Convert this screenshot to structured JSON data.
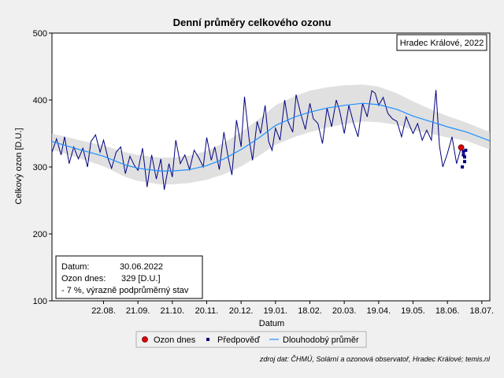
{
  "chart_data": {
    "type": "line",
    "title": "Denní průměry celkového ozonu",
    "location_label": "Hradec Králové, 2022",
    "xlabel": "Datum",
    "ylabel": "Celkový ozon [D.U.]",
    "ylim": [
      100,
      500
    ],
    "yticks": [
      100,
      200,
      300,
      400,
      500
    ],
    "x_range": [
      "2021-07-08",
      "2022-07-25"
    ],
    "xticks": [
      "22.08.",
      "21.09.",
      "21.10.",
      "20.11.",
      "20.12.",
      "19.01.",
      "18.02.",
      "20.03.",
      "19.04.",
      "19.05.",
      "18.06.",
      "18.07."
    ],
    "xtick_dates": [
      "2021-08-22",
      "2021-09-21",
      "2021-10-21",
      "2021-11-20",
      "2021-12-20",
      "2022-01-19",
      "2022-02-18",
      "2022-03-20",
      "2022-04-19",
      "2022-05-19",
      "2022-06-18",
      "2022-07-18"
    ],
    "grid": false,
    "legend_position": "bottom",
    "legend": [
      {
        "label": "Ozon dnes",
        "marker": "red-dot"
      },
      {
        "label": "Předpověď",
        "marker": "navy-square"
      },
      {
        "label": "Dlouhodobý průměr",
        "marker": "blue-line"
      }
    ],
    "info_box": {
      "date_label": "Datum:",
      "date_value": "30.06.2022",
      "ozone_label": "Ozon dnes:",
      "ozone_value": "329 [D.U.]",
      "status": "- 7 %, výrazně podprůměrný stav"
    },
    "source": "zdroj dat: ČHMÚ, Solární a ozonová observatoř, Hradec Králové; temis.nl",
    "series": [
      {
        "name": "Dlouhodobý průměr",
        "x": [
          "2021-07-08",
          "2021-08-01",
          "2021-08-22",
          "2021-09-10",
          "2021-09-21",
          "2021-10-10",
          "2021-10-21",
          "2021-11-05",
          "2021-11-20",
          "2021-12-05",
          "2021-12-20",
          "2022-01-05",
          "2022-01-19",
          "2022-02-05",
          "2022-02-18",
          "2022-03-05",
          "2022-03-20",
          "2022-04-05",
          "2022-04-19",
          "2022-05-05",
          "2022-05-19",
          "2022-06-05",
          "2022-06-18",
          "2022-07-05",
          "2022-07-25"
        ],
        "y": [
          338,
          326,
          316,
          303,
          298,
          294,
          294,
          296,
          302,
          312,
          326,
          344,
          362,
          375,
          382,
          388,
          392,
          395,
          393,
          386,
          376,
          367,
          360,
          352,
          339
        ]
      },
      {
        "name": "Denní průměry",
        "x": [
          "2021-07-08",
          "2021-07-12",
          "2021-07-16",
          "2021-07-19",
          "2021-07-23",
          "2021-07-27",
          "2021-07-31",
          "2021-08-04",
          "2021-08-08",
          "2021-08-11",
          "2021-08-15",
          "2021-08-19",
          "2021-08-22",
          "2021-08-26",
          "2021-08-29",
          "2021-09-02",
          "2021-09-06",
          "2021-09-10",
          "2021-09-14",
          "2021-09-18",
          "2021-09-21",
          "2021-09-25",
          "2021-09-29",
          "2021-10-03",
          "2021-10-07",
          "2021-10-11",
          "2021-10-14",
          "2021-10-18",
          "2021-10-21",
          "2021-10-24",
          "2021-10-28",
          "2021-11-01",
          "2021-11-05",
          "2021-11-09",
          "2021-11-13",
          "2021-11-17",
          "2021-11-20",
          "2021-11-24",
          "2021-11-27",
          "2021-12-01",
          "2021-12-05",
          "2021-12-09",
          "2021-12-12",
          "2021-12-16",
          "2021-12-20",
          "2021-12-23",
          "2021-12-27",
          "2021-12-30",
          "2022-01-03",
          "2022-01-06",
          "2022-01-10",
          "2022-01-13",
          "2022-01-16",
          "2022-01-19",
          "2022-01-23",
          "2022-01-27",
          "2022-01-30",
          "2022-02-03",
          "2022-02-06",
          "2022-02-10",
          "2022-02-14",
          "2022-02-18",
          "2022-02-21",
          "2022-02-25",
          "2022-03-01",
          "2022-03-05",
          "2022-03-09",
          "2022-03-13",
          "2022-03-16",
          "2022-03-20",
          "2022-03-24",
          "2022-03-28",
          "2022-04-01",
          "2022-04-05",
          "2022-04-09",
          "2022-04-13",
          "2022-04-16",
          "2022-04-19",
          "2022-04-23",
          "2022-04-27",
          "2022-05-01",
          "2022-05-05",
          "2022-05-09",
          "2022-05-13",
          "2022-05-16",
          "2022-05-19",
          "2022-05-23",
          "2022-05-27",
          "2022-05-31",
          "2022-06-04",
          "2022-06-08",
          "2022-06-11",
          "2022-06-14",
          "2022-06-18",
          "2022-06-22",
          "2022-06-26",
          "2022-06-30"
        ],
        "y": [
          322,
          342,
          318,
          345,
          305,
          330,
          312,
          328,
          300,
          338,
          348,
          322,
          340,
          312,
          298,
          322,
          330,
          290,
          316,
          302,
          295,
          328,
          270,
          318,
          282,
          312,
          266,
          305,
          285,
          340,
          305,
          318,
          296,
          325,
          314,
          300,
          344,
          310,
          330,
          296,
          352,
          312,
          288,
          370,
          330,
          405,
          342,
          310,
          368,
          350,
          392,
          338,
          325,
          358,
          340,
          400,
          368,
          352,
          408,
          380,
          356,
          395,
          372,
          365,
          335,
          388,
          360,
          400,
          384,
          350,
          392,
          366,
          345,
          395,
          375,
          414,
          410,
          392,
          404,
          380,
          372,
          368,
          345,
          375,
          362,
          350,
          365,
          340,
          355,
          340,
          415,
          332,
          300,
          320,
          345,
          305,
          329
        ]
      },
      {
        "name": "Předpověď",
        "x": [
          "2022-07-01",
          "2022-07-02",
          "2022-07-02",
          "2022-07-03",
          "2022-07-03",
          "2022-07-04"
        ],
        "y": [
          300,
          323,
          318,
          315,
          308,
          325
        ]
      },
      {
        "name": "Ozon dnes",
        "x": [
          "2022-06-30"
        ],
        "y": [
          329
        ]
      }
    ],
    "band": {
      "x": [
        "2021-07-08",
        "2021-08-01",
        "2021-08-22",
        "2021-09-10",
        "2021-09-21",
        "2021-10-10",
        "2021-10-21",
        "2021-11-05",
        "2021-11-20",
        "2021-12-05",
        "2021-12-20",
        "2022-01-05",
        "2022-01-19",
        "2022-02-05",
        "2022-02-18",
        "2022-03-05",
        "2022-03-20",
        "2022-04-05",
        "2022-04-19",
        "2022-05-05",
        "2022-05-19",
        "2022-06-05",
        "2022-06-18",
        "2022-07-05",
        "2022-07-25"
      ],
      "upper": [
        350,
        340,
        332,
        322,
        318,
        314,
        314,
        317,
        324,
        336,
        352,
        372,
        392,
        406,
        414,
        419,
        422,
        423,
        420,
        410,
        398,
        385,
        376,
        366,
        352
      ],
      "lower": [
        326,
        313,
        301,
        285,
        279,
        274,
        274,
        276,
        281,
        289,
        301,
        317,
        333,
        345,
        352,
        359,
        364,
        368,
        367,
        363,
        355,
        349,
        344,
        339,
        326
      ]
    }
  }
}
